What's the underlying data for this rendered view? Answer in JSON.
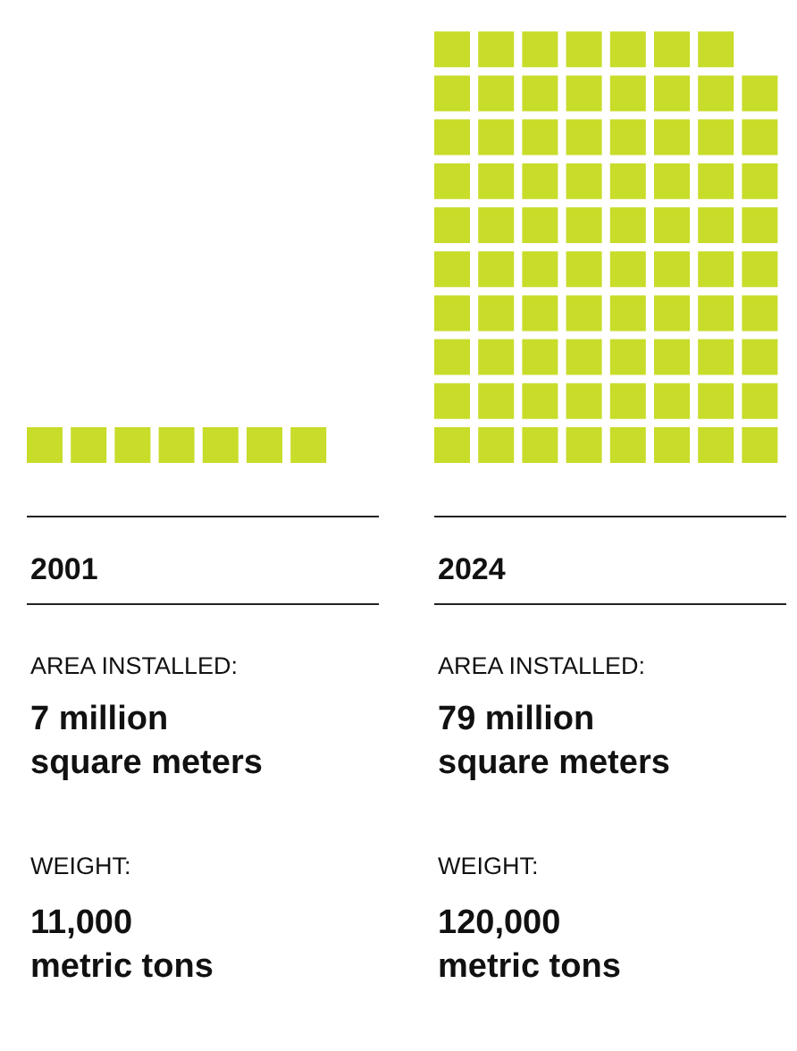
{
  "chart_data": {
    "type": "other",
    "categories": [
      "2001",
      "2024"
    ],
    "values": [
      7,
      79
    ],
    "color": "#c8dc2a",
    "value_labels": [
      "7 million\nsquare meters",
      "79 million\nsquare meters"
    ],
    "annotations": [
      "AREA INSTALLED:",
      "WEIGHT:",
      "11,000\nmetric tons",
      "AREA INSTALLED:",
      "WEIGHT:",
      "120,000\nmetric tons"
    ]
  }
}
